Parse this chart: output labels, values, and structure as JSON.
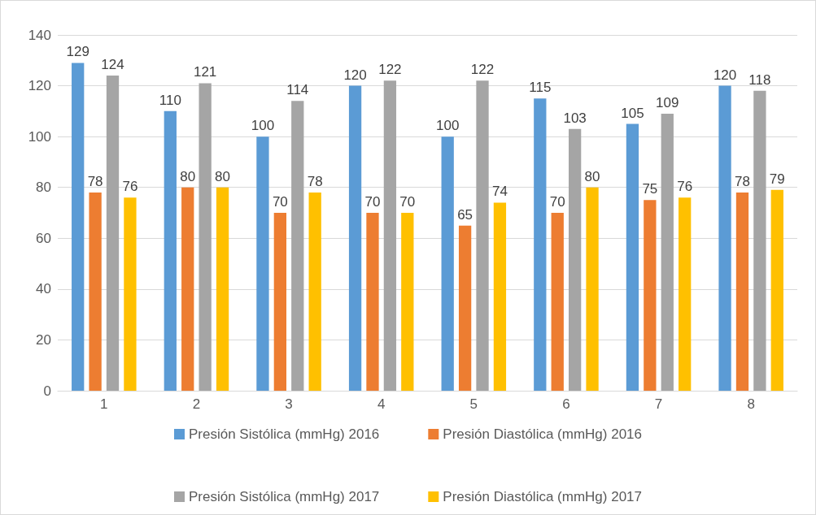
{
  "chart_data": {
    "type": "bar",
    "categories": [
      "1",
      "2",
      "3",
      "4",
      "5",
      "6",
      "7",
      "8"
    ],
    "series": [
      {
        "name": "Presión Sistólica (mmHg) 2016",
        "color": "#5b9bd5",
        "values": [
          129,
          110,
          100,
          120,
          100,
          115,
          105,
          120
        ]
      },
      {
        "name": "Presión Diastólica (mmHg) 2016",
        "color": "#ed7d31",
        "values": [
          78,
          80,
          70,
          70,
          65,
          70,
          75,
          78
        ]
      },
      {
        "name": "Presión Sistólica (mmHg) 2017",
        "color": "#a5a5a5",
        "values": [
          124,
          121,
          114,
          122,
          122,
          103,
          109,
          118
        ]
      },
      {
        "name": "Presión Diastólica (mmHg) 2017",
        "color": "#ffc000",
        "values": [
          76,
          80,
          78,
          70,
          74,
          80,
          76,
          79
        ]
      }
    ],
    "ylim": [
      0,
      140
    ],
    "yticks": [
      0,
      20,
      40,
      60,
      80,
      100,
      120,
      140
    ],
    "grid": "y",
    "legend": "bottom",
    "data_labels": true
  }
}
